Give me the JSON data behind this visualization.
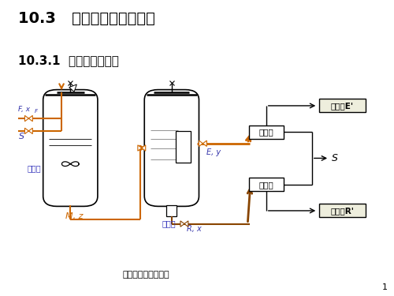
{
  "title1": "10.3   液液萸取过程的计算",
  "title2": "10.3.1  单级萸取的计算",
  "caption": "单级萸取流程示意图",
  "label_mixer": "混合器",
  "label_settler": "澄清槽",
  "label_extract_phase": "萸取相",
  "label_raffinate_phase": "萸余相",
  "label_extract_liquid": "萸取液E'",
  "label_raffinate_liquid": "萸余液R'",
  "label_Mz": "M, z",
  "label_Ey": "E, y",
  "label_Rx": "R, x",
  "label_FxF": "F, x",
  "label_F_sub": "F",
  "label_S": "S",
  "bg_color": "#ffffff",
  "title_color": "#000000",
  "blue_color": "#3333bb",
  "orange_color": "#cc6600",
  "brown_color": "#884400",
  "label_blue": "#3333aa",
  "box_bg": "#eeeedd",
  "page_num": "1"
}
